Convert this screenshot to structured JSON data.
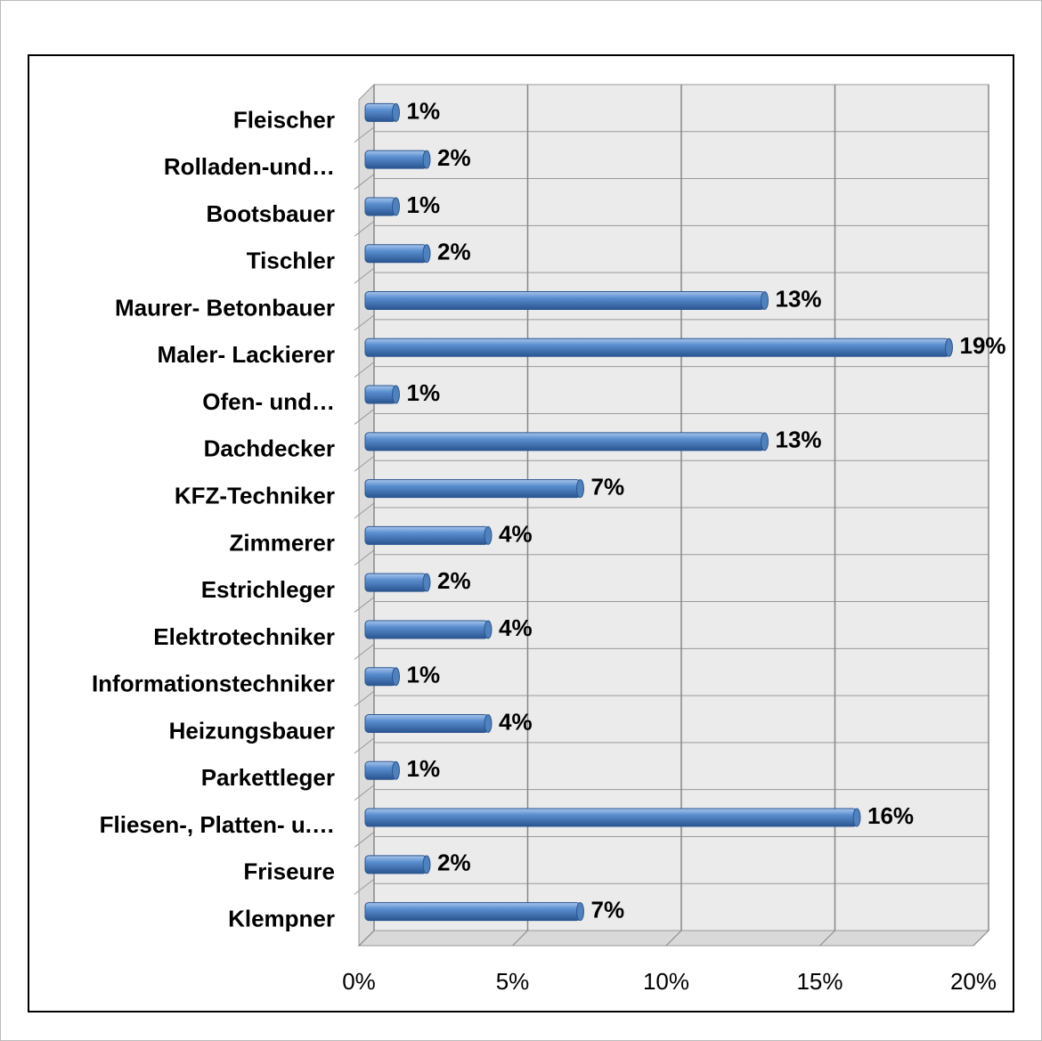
{
  "chart_data": {
    "type": "bar",
    "orientation": "horizontal",
    "categories": [
      "Fleischer",
      "Rolladen-und…",
      "Bootsbauer",
      "Tischler",
      "Maurer- Betonbauer",
      "Maler- Lackierer",
      "Ofen- und…",
      "Dachdecker",
      "KFZ-Techniker",
      "Zimmerer",
      "Estrichleger",
      "Elektrotechniker",
      "Informationstechniker",
      "Heizungsbauer",
      "Parkettleger",
      "Fliesen-, Platten- u.…",
      "Friseure",
      "Klempner"
    ],
    "values": [
      1,
      2,
      1,
      2,
      13,
      19,
      1,
      13,
      7,
      4,
      2,
      4,
      1,
      4,
      1,
      16,
      2,
      7
    ],
    "value_labels": [
      "1%",
      "2%",
      "1%",
      "2%",
      "13%",
      "19%",
      "1%",
      "13%",
      "7%",
      "4%",
      "2%",
      "4%",
      "1%",
      "4%",
      "1%",
      "16%",
      "2%",
      "7%"
    ],
    "color": "#4f81bd",
    "xlim": [
      0,
      20
    ],
    "xticks": [
      {
        "value": 0,
        "label": "0%"
      },
      {
        "value": 5,
        "label": "5%"
      },
      {
        "value": 10,
        "label": "10%"
      },
      {
        "value": 15,
        "label": "15%"
      },
      {
        "value": 20,
        "label": "20%"
      }
    ],
    "grid": true
  }
}
